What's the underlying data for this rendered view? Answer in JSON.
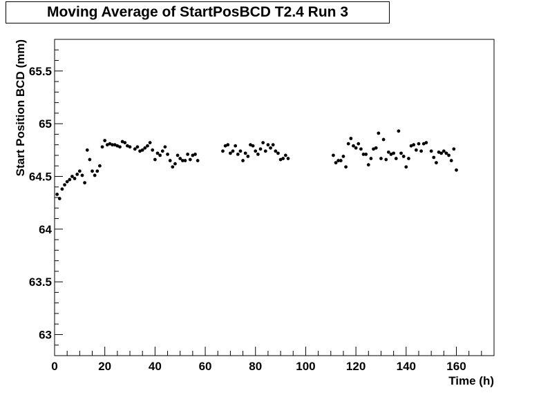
{
  "chart_data": {
    "type": "scatter",
    "title": "Moving Average of StartPosBCD T2.4 Run 3",
    "xlabel": "Time (h)",
    "ylabel": "Start Position BCD (mm)",
    "xlim": [
      0,
      175
    ],
    "ylim": [
      62.8,
      65.8
    ],
    "x_ticks": [
      0,
      20,
      40,
      60,
      80,
      100,
      120,
      140,
      160
    ],
    "x_tick_labels": [
      "0",
      "20",
      "40",
      "60",
      "80",
      "100",
      "120",
      "140",
      "160"
    ],
    "y_ticks": [
      63,
      63.5,
      64,
      64.5,
      65,
      65.5
    ],
    "y_tick_labels": [
      "63",
      "63.5",
      "64",
      "64.5",
      "65",
      "65.5"
    ],
    "grid": false,
    "legend": "none",
    "marker_color": "#000000",
    "series": [
      {
        "points": [
          [
            1,
            64.33
          ],
          [
            2,
            64.29
          ],
          [
            3,
            64.38
          ],
          [
            4,
            64.42
          ],
          [
            5,
            64.45
          ],
          [
            6,
            64.47
          ],
          [
            7,
            64.5
          ],
          [
            8,
            64.48
          ],
          [
            9,
            64.52
          ],
          [
            10,
            64.55
          ],
          [
            11,
            64.51
          ],
          [
            12,
            64.44
          ],
          [
            13,
            64.75
          ],
          [
            14,
            64.66
          ],
          [
            15,
            64.55
          ],
          [
            16,
            64.51
          ],
          [
            17,
            64.55
          ],
          [
            18,
            64.6
          ],
          [
            19,
            64.78
          ],
          [
            20,
            64.84
          ],
          [
            21,
            64.8
          ],
          [
            22,
            64.81
          ],
          [
            23,
            64.8
          ],
          [
            24,
            64.8
          ],
          [
            25,
            64.79
          ],
          [
            26,
            64.78
          ],
          [
            27,
            64.83
          ],
          [
            28,
            64.82
          ],
          [
            29,
            64.79
          ],
          [
            30,
            64.78
          ],
          [
            32,
            64.76
          ],
          [
            33,
            64.78
          ],
          [
            34,
            64.74
          ],
          [
            35,
            64.75
          ],
          [
            36,
            64.77
          ],
          [
            37,
            64.79
          ],
          [
            38,
            64.82
          ],
          [
            39,
            64.75
          ],
          [
            40,
            64.66
          ],
          [
            41,
            64.72
          ],
          [
            42,
            64.7
          ],
          [
            43,
            64.74
          ],
          [
            44,
            64.78
          ],
          [
            45,
            64.71
          ],
          [
            46,
            64.65
          ],
          [
            47,
            64.59
          ],
          [
            48,
            64.62
          ],
          [
            49,
            64.7
          ],
          [
            50,
            64.67
          ],
          [
            51,
            64.65
          ],
          [
            52,
            64.65
          ],
          [
            53,
            64.71
          ],
          [
            54,
            64.66
          ],
          [
            55,
            64.7
          ],
          [
            56,
            64.71
          ],
          [
            57,
            64.65
          ],
          [
            67,
            64.74
          ],
          [
            68,
            64.79
          ],
          [
            69,
            64.8
          ],
          [
            70,
            64.72
          ],
          [
            71,
            64.74
          ],
          [
            72,
            64.79
          ],
          [
            73,
            64.71
          ],
          [
            74,
            64.74
          ],
          [
            75,
            64.65
          ],
          [
            76,
            64.72
          ],
          [
            77,
            64.69
          ],
          [
            78,
            64.8
          ],
          [
            79,
            64.79
          ],
          [
            80,
            64.74
          ],
          [
            81,
            64.71
          ],
          [
            82,
            64.76
          ],
          [
            83,
            64.82
          ],
          [
            84,
            64.74
          ],
          [
            85,
            64.8
          ],
          [
            86,
            64.77
          ],
          [
            87,
            64.8
          ],
          [
            88,
            64.74
          ],
          [
            89,
            64.72
          ],
          [
            90,
            64.66
          ],
          [
            91,
            64.67
          ],
          [
            92,
            64.7
          ],
          [
            93,
            64.67
          ],
          [
            111,
            64.7
          ],
          [
            112,
            64.63
          ],
          [
            113,
            64.65
          ],
          [
            114,
            64.65
          ],
          [
            115,
            64.69
          ],
          [
            116,
            64.59
          ],
          [
            117,
            64.81
          ],
          [
            118,
            64.86
          ],
          [
            119,
            64.79
          ],
          [
            120,
            64.77
          ],
          [
            121,
            64.81
          ],
          [
            122,
            64.76
          ],
          [
            123,
            64.71
          ],
          [
            124,
            64.71
          ],
          [
            125,
            64.61
          ],
          [
            126,
            64.67
          ],
          [
            127,
            64.76
          ],
          [
            128,
            64.77
          ],
          [
            129,
            64.91
          ],
          [
            130,
            64.67
          ],
          [
            131,
            64.85
          ],
          [
            132,
            64.66
          ],
          [
            133,
            64.73
          ],
          [
            134,
            64.71
          ],
          [
            135,
            64.72
          ],
          [
            136,
            64.67
          ],
          [
            137,
            64.93
          ],
          [
            138,
            64.72
          ],
          [
            139,
            64.69
          ],
          [
            140,
            64.59
          ],
          [
            141,
            64.67
          ],
          [
            142,
            64.79
          ],
          [
            143,
            64.8
          ],
          [
            144,
            64.75
          ],
          [
            145,
            64.81
          ],
          [
            146,
            64.74
          ],
          [
            147,
            64.81
          ],
          [
            148,
            64.82
          ],
          [
            150,
            64.74
          ],
          [
            151,
            64.68
          ],
          [
            152,
            64.63
          ],
          [
            153,
            64.73
          ],
          [
            154,
            64.72
          ],
          [
            155,
            64.74
          ],
          [
            156,
            64.72
          ],
          [
            157,
            64.7
          ],
          [
            158,
            64.65
          ],
          [
            159,
            64.76
          ],
          [
            160,
            64.56
          ]
        ]
      }
    ]
  }
}
